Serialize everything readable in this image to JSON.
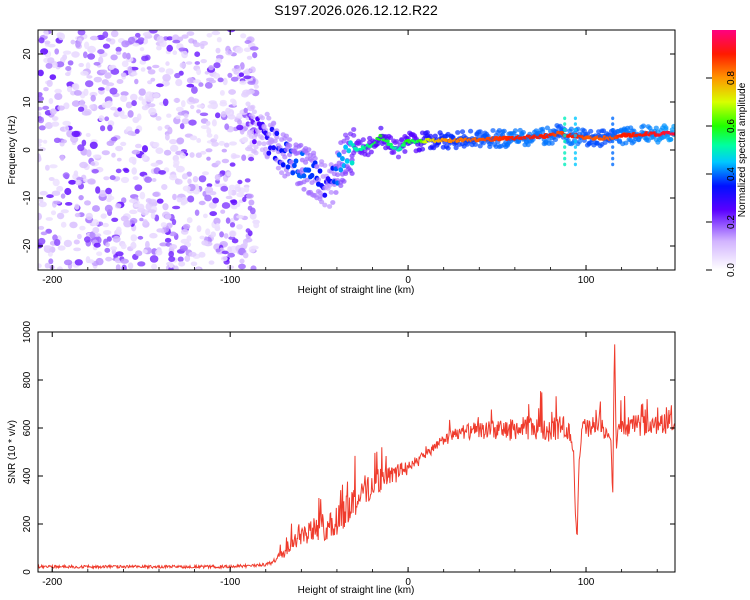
{
  "title": "S197.2026.026.12.12.R22",
  "colors": {
    "snr_line": "#ef3b2c",
    "axis": "#000000",
    "background": "#ffffff"
  },
  "chart_data": [
    {
      "type": "heatmap",
      "title": "S197.2026.026.12.12.R22",
      "xlabel": "Height of straight line (km)",
      "ylabel": "Frequency (Hz)",
      "xlim": [
        -208,
        150
      ],
      "ylim": [
        -25,
        25
      ],
      "xticks": [
        -200,
        -100,
        0,
        100
      ],
      "xtick_labels": [
        "-200",
        "-100",
        "0",
        "100"
      ],
      "yticks": [
        -20,
        -10,
        0,
        10,
        20
      ],
      "ytick_labels": [
        "-20",
        "-10",
        "0",
        "10",
        "20"
      ],
      "colorbar": {
        "label": "Normalized spectral amplitude",
        "range": [
          0,
          1
        ],
        "ticks": [
          0.0,
          0.2,
          0.4,
          0.6,
          0.8
        ],
        "tick_labels": [
          "0.0",
          "0.2",
          "0.4",
          "0.6",
          "0.8"
        ]
      },
      "ridge": {
        "description": "frequency of peak amplitude vs height",
        "x": [
          -90,
          -80,
          -70,
          -60,
          -50,
          -45,
          -40,
          -35,
          -30,
          -20,
          -15,
          -10,
          -5,
          0,
          5,
          10,
          20,
          40,
          60,
          80,
          85,
          90,
          95,
          100,
          110,
          115,
          120,
          130,
          150
        ],
        "freq": [
          5,
          3,
          -1,
          -3,
          -6,
          -8,
          -5,
          -1,
          0,
          1,
          3,
          1,
          0,
          2,
          1.5,
          2,
          2,
          2.2,
          2.5,
          3,
          3.5,
          3,
          3,
          2.5,
          2.5,
          2.5,
          3,
          3.3,
          3.4
        ],
        "amplitude": [
          0.2,
          0.3,
          0.35,
          0.4,
          0.35,
          0.3,
          0.4,
          0.45,
          0.5,
          0.55,
          0.6,
          0.55,
          0.5,
          0.6,
          0.55,
          0.7,
          0.8,
          0.85,
          0.9,
          0.9,
          0.85,
          0.9,
          0.9,
          0.85,
          0.85,
          0.85,
          0.9,
          0.9,
          0.95
        ]
      },
      "noise_region": {
        "x_range": [
          -208,
          -85
        ],
        "freq_range": [
          -25,
          25
        ],
        "amplitude": [
          0.05,
          0.25
        ]
      }
    },
    {
      "type": "line",
      "xlabel": "Height of straight line (km)",
      "ylabel": "SNR (10 * v/v)",
      "xlim": [
        -208,
        150
      ],
      "ylim": [
        0,
        1000
      ],
      "xticks": [
        -200,
        -100,
        0,
        100
      ],
      "xtick_labels": [
        "-200",
        "-100",
        "0",
        "100"
      ],
      "yticks": [
        0,
        200,
        400,
        600,
        800,
        1000
      ],
      "ytick_labels": [
        "0",
        "200",
        "400",
        "600",
        "800",
        "1000"
      ],
      "series": [
        {
          "name": "SNR",
          "x": [
            -208,
            -180,
            -150,
            -120,
            -100,
            -90,
            -80,
            -75,
            -70,
            -65,
            -60,
            -55,
            -50,
            -45,
            -40,
            -35,
            -30,
            -25,
            -20,
            -15,
            -10,
            -5,
            0,
            5,
            10,
            15,
            20,
            25,
            30,
            40,
            50,
            60,
            70,
            80,
            90,
            93,
            94,
            95,
            96,
            98,
            100,
            105,
            110,
            114,
            115,
            116,
            117,
            118,
            120,
            125,
            130,
            140,
            150
          ],
          "values": [
            22,
            22,
            22,
            22,
            22,
            25,
            30,
            50,
            90,
            120,
            150,
            170,
            180,
            190,
            210,
            260,
            300,
            330,
            360,
            390,
            400,
            420,
            440,
            460,
            490,
            520,
            550,
            570,
            580,
            590,
            590,
            595,
            600,
            600,
            600,
            500,
            250,
            130,
            450,
            600,
            600,
            600,
            600,
            550,
            300,
            1000,
            500,
            600,
            610,
            610,
            610,
            615,
            620
          ],
          "spike_amplitude": [
            0,
            0,
            0,
            0,
            0,
            5,
            8,
            20,
            60,
            80,
            80,
            100,
            120,
            130,
            150,
            160,
            160,
            150,
            130,
            110,
            90,
            80,
            60,
            50,
            40,
            40,
            50,
            60,
            70,
            80,
            90,
            100,
            110,
            120,
            100,
            0,
            0,
            0,
            0,
            100,
            110,
            100,
            100,
            0,
            0,
            0,
            0,
            0,
            100,
            90,
            90,
            90,
            90
          ]
        }
      ]
    }
  ]
}
